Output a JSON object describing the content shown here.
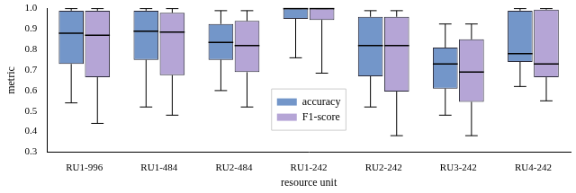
{
  "chart_data": {
    "type": "boxplot",
    "x_label": "resource unit",
    "y_label": "metric",
    "categories": [
      "RU1-996",
      "RU1-484",
      "RU2-484",
      "RU1-242",
      "RU2-242",
      "RU3-242",
      "RU4-242"
    ],
    "series": [
      {
        "name": "accuracy",
        "color": "#7396c9",
        "low": [
          0.54,
          0.52,
          0.6,
          0.76,
          0.52,
          0.48,
          0.62
        ],
        "q1": [
          0.73,
          0.75,
          0.75,
          0.95,
          0.67,
          0.61,
          0.74
        ],
        "median": [
          0.88,
          0.89,
          0.835,
          1.0,
          0.82,
          0.73,
          0.78
        ],
        "q3": [
          0.99,
          0.99,
          0.925,
          1.0,
          0.96,
          0.81,
          0.99
        ],
        "high": [
          1.0,
          1.0,
          0.99,
          1.0,
          0.99,
          0.925,
          1.0
        ]
      },
      {
        "name": "F1-score",
        "color": "#b5a5d6",
        "low": [
          0.44,
          0.48,
          0.52,
          0.685,
          0.38,
          0.38,
          0.55
        ],
        "q1": [
          0.665,
          0.675,
          0.69,
          0.945,
          0.595,
          0.545,
          0.665
        ],
        "median": [
          0.87,
          0.885,
          0.82,
          1.0,
          0.82,
          0.69,
          0.73
        ],
        "q3": [
          0.99,
          0.98,
          0.94,
          1.0,
          0.96,
          0.85,
          0.995
        ],
        "high": [
          1.0,
          1.0,
          0.99,
          1.0,
          0.99,
          0.925,
          1.0
        ]
      }
    ],
    "ylim": [
      0.3,
      1.0
    ],
    "yticks": [
      0.3,
      0.4,
      0.5,
      0.6,
      0.7,
      0.8,
      0.9,
      {
        "value": 1.0,
        "label": "1.0"
      }
    ],
    "grid": false,
    "legend": "center"
  }
}
